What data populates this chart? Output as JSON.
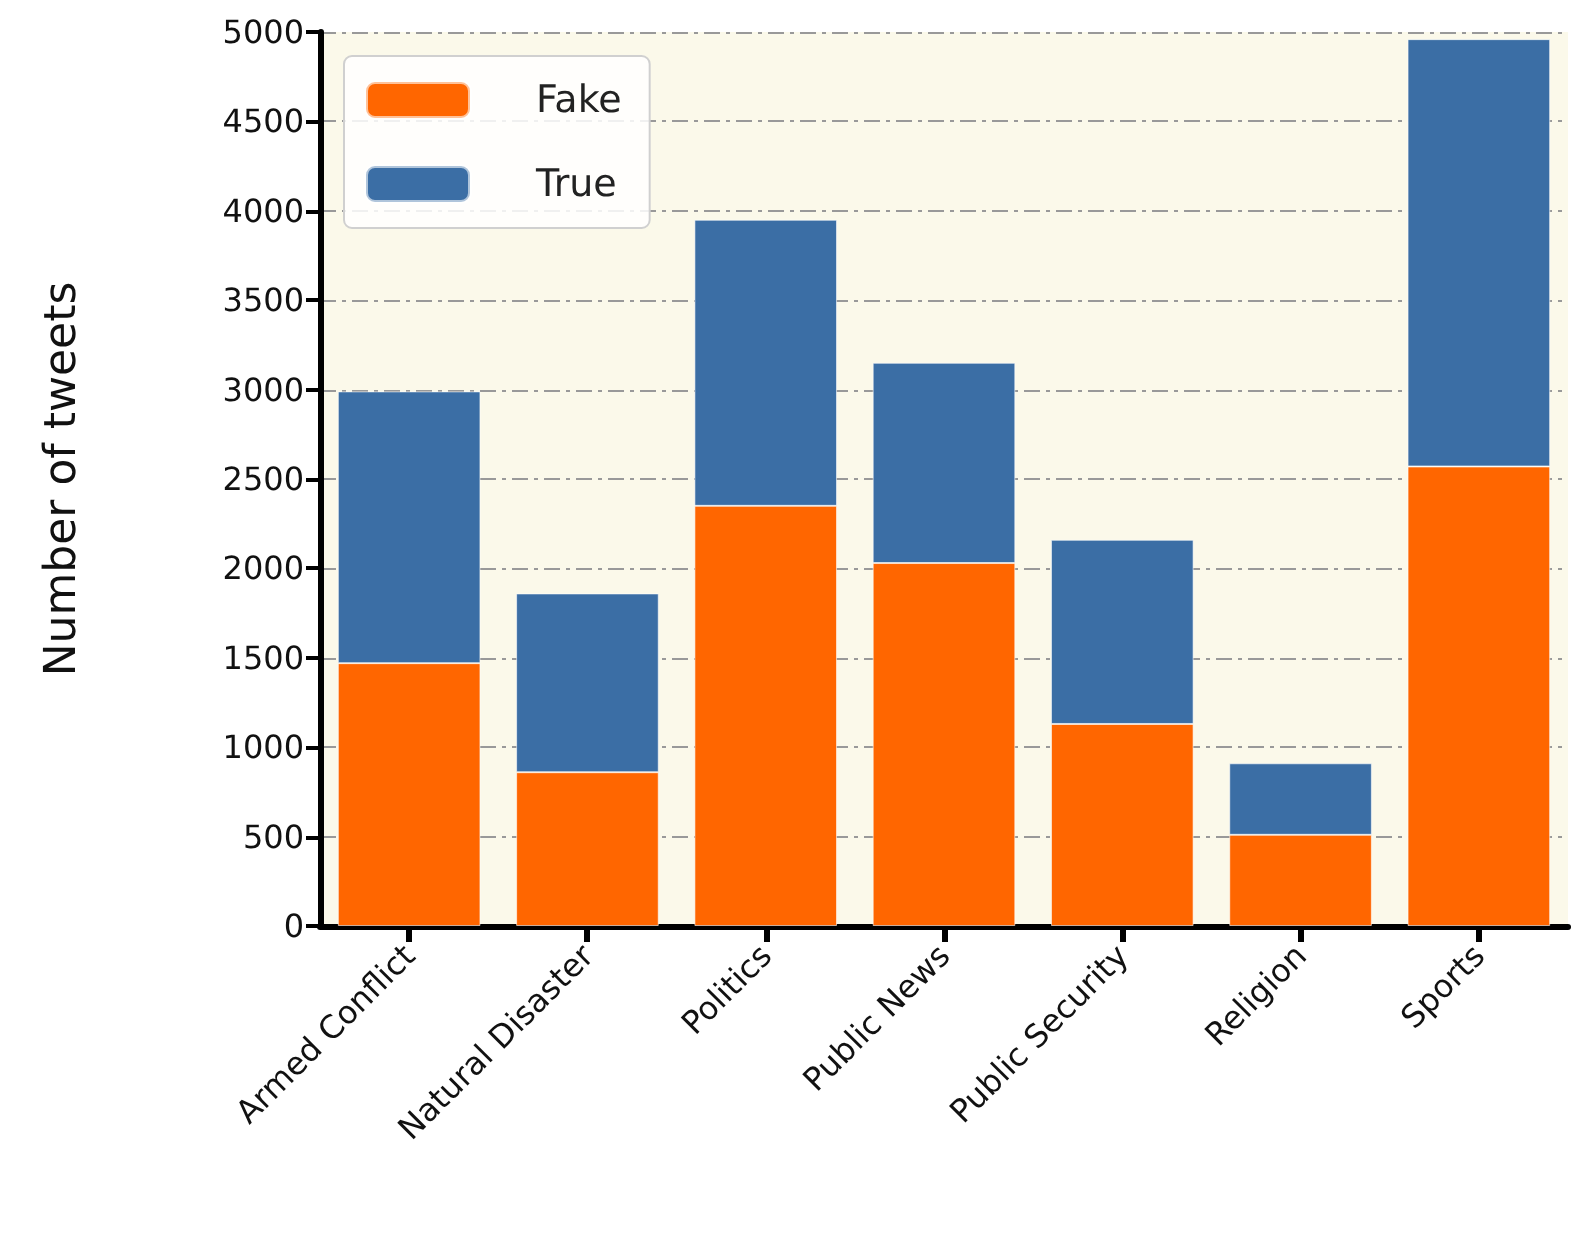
{
  "chart_data": {
    "type": "bar",
    "ylabel": "Number of tweets",
    "categories": [
      "Armed Conflict",
      "Natural Disaster",
      "Politics",
      "Public News",
      "Public Security",
      "Religion",
      "Sports"
    ],
    "series": [
      {
        "name": "Fake",
        "color": "#ff6600",
        "values": [
          1470,
          860,
          2350,
          2030,
          1130,
          510,
          2570
        ]
      },
      {
        "name": "True",
        "color": "#3b6ea5",
        "values": [
          1520,
          1000,
          1600,
          1120,
          1030,
          400,
          2390
        ]
      }
    ],
    "stacked": true,
    "ylim": [
      0,
      5000
    ],
    "yticks": [
      0,
      500,
      1000,
      1500,
      2000,
      2500,
      3000,
      3500,
      4000,
      4500,
      5000
    ],
    "grid": "y",
    "legend": "top left"
  }
}
